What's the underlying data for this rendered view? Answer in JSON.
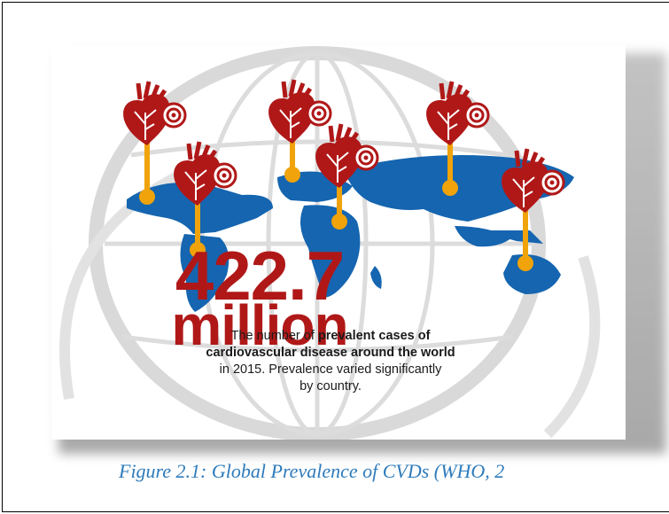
{
  "infographic": {
    "headline_number": "422.7",
    "headline_unit": "million",
    "description": {
      "part1": "The number of ",
      "bold1": "prevalent cases of",
      "bold2": "cardiovascular disease around the world",
      "part2": "in 2015. Prevalence varied significantly",
      "part3": "by country."
    },
    "colors": {
      "heart": "#b01818",
      "map": "#1565b0",
      "pin": "#f0a30a",
      "globe": "#d8d8d8"
    },
    "icons": [
      "heart-pin-icon",
      "target-icon"
    ]
  },
  "caption": "Figure 2.1: Global Prevalence of CVDs (WHO, 2"
}
